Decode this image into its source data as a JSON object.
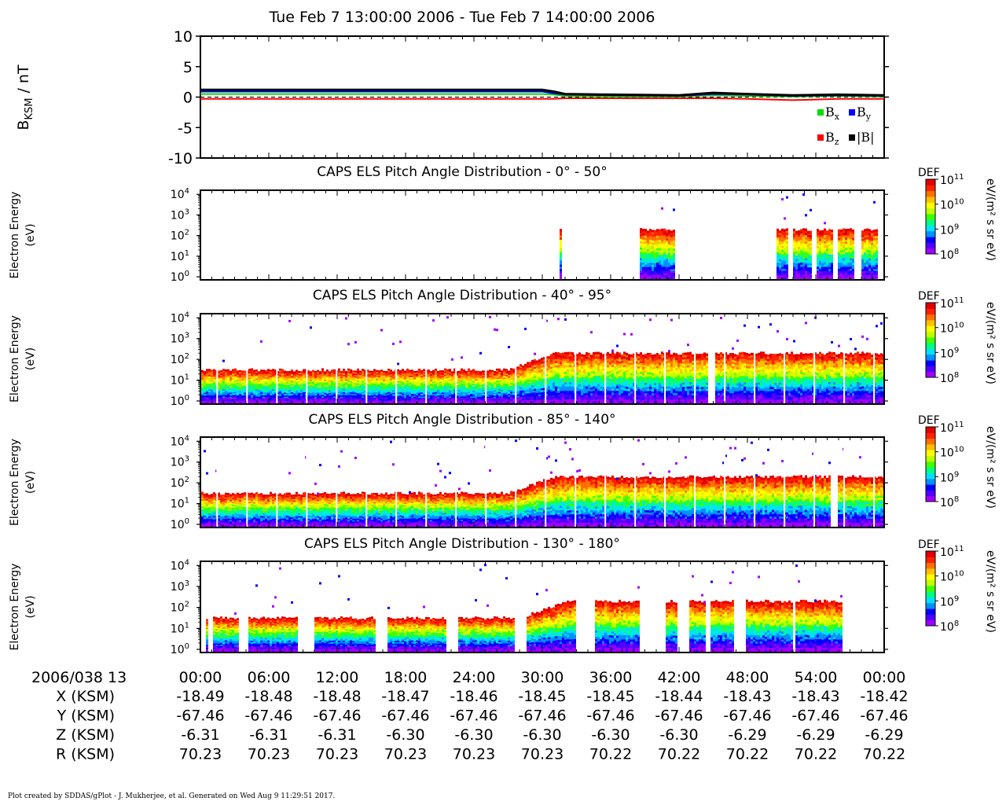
{
  "title": "Tue Feb 7 13:00:00 2006 - Tue Feb 7 14:00:00 2006",
  "footer": "Plot created by SDDAS/gPlot - J. Mukherjee, et al.  Generated on Wed Aug 9 11:29:51 2017.",
  "colors": {
    "bx": "#00dd00",
    "by": "#0000ff",
    "bz": "#ff0000",
    "bmag": "#000000",
    "colormap": [
      "#a000ff",
      "#5000ff",
      "#0000ff",
      "#0090ff",
      "#00e0ff",
      "#00ff80",
      "#40ff00",
      "#c0ff00",
      "#ffff00",
      "#ffc000",
      "#ff7000",
      "#ff2000",
      "#e00000"
    ]
  },
  "chart_data": [
    {
      "type": "line",
      "panel": "magnetic-field",
      "ylabel_main": "B",
      "ylabel_sub": "KSM",
      "ylabel_unit": " / nT",
      "ylim": [
        -10,
        10
      ],
      "yticks": [
        "10",
        "5",
        "0",
        "-5",
        "-10"
      ],
      "ytick_values": [
        10,
        5,
        0,
        -5,
        -10
      ],
      "x_minutes": [
        0,
        30,
        31,
        32,
        36,
        42,
        45,
        48,
        52,
        56,
        60
      ],
      "series": [
        {
          "name": "B",
          "sub": "x",
          "color_key": "bx",
          "values": [
            0.5,
            0.5,
            0.4,
            0.2,
            0.1,
            0.1,
            0.3,
            0.2,
            0.1,
            0.2,
            0.1
          ]
        },
        {
          "name": "B",
          "sub": "y",
          "color_key": "by",
          "values": [
            0.9,
            0.9,
            0.6,
            0.4,
            0.3,
            0.2,
            0.5,
            0.4,
            0.2,
            0.3,
            0.2
          ]
        },
        {
          "name": "B",
          "sub": "z",
          "color_key": "bz",
          "values": [
            -0.3,
            -0.3,
            -0.3,
            -0.2,
            -0.2,
            -0.2,
            -0.2,
            -0.3,
            -0.5,
            -0.3,
            -0.3
          ]
        },
        {
          "name": "|B|",
          "sub": "",
          "color_key": "bmag",
          "values": [
            1.2,
            1.2,
            0.9,
            0.5,
            0.4,
            0.3,
            0.7,
            0.5,
            0.3,
            0.4,
            0.3
          ]
        }
      ],
      "legend_placement": "bottom-right"
    },
    {
      "type": "heatmap",
      "panel": "pad-0-50",
      "title": "CAPS ELS Pitch Angle Distribution - 0° - 50°",
      "ylabel": [
        "Electron Energy",
        "(eV)"
      ],
      "log_y": true,
      "yticks": [
        0,
        1,
        2,
        3,
        4
      ],
      "colorbar": {
        "label": "DEF",
        "unit": "eV/(m² s sr eV)",
        "ticks": [
          8,
          9,
          10,
          11
        ]
      },
      "segments": [
        [
          31.5,
          31.7
        ],
        [
          38.5,
          41.5
        ],
        [
          50.5,
          51.5
        ],
        [
          52.0,
          53.5
        ],
        [
          54.0,
          55.5
        ],
        [
          55.8,
          57.3
        ],
        [
          57.8,
          59.3
        ]
      ],
      "top_exp": 2.3
    },
    {
      "type": "heatmap",
      "panel": "pad-40-95",
      "title": "CAPS ELS Pitch Angle Distribution - 40° - 95°",
      "ylabel": [
        "Electron Energy",
        "(eV)"
      ],
      "log_y": true,
      "yticks": [
        0,
        1,
        2,
        3,
        4
      ],
      "colorbar": {
        "label": "DEF",
        "unit": "eV/(m² s sr eV)",
        "ticks": [
          8,
          9,
          10,
          11
        ]
      },
      "segments": [
        [
          0,
          60
        ]
      ],
      "gaps": [
        44.5,
        45.1
      ],
      "top_exp_early": 1.5,
      "top_exp_late": 2.3,
      "transition_minute": 27
    },
    {
      "type": "heatmap",
      "panel": "pad-85-140",
      "title": "CAPS ELS Pitch Angle Distribution - 85° - 140°",
      "ylabel": [
        "Electron Energy",
        "(eV)"
      ],
      "log_y": true,
      "yticks": [
        0,
        1,
        2,
        3,
        4
      ],
      "colorbar": {
        "label": "DEF",
        "unit": "eV/(m² s sr eV)",
        "ticks": [
          8,
          9,
          10,
          11
        ]
      },
      "segments": [
        [
          0,
          60
        ]
      ],
      "gaps": [
        55.3,
        55.9
      ],
      "top_exp_early": 1.5,
      "top_exp_late": 2.3,
      "transition_minute": 27
    },
    {
      "type": "heatmap",
      "panel": "pad-130-180",
      "title": "CAPS ELS Pitch Angle Distribution - 130° - 180°",
      "ylabel": [
        "Electron Energy",
        "(eV)"
      ],
      "log_y": true,
      "yticks": [
        0,
        1,
        2,
        3,
        4
      ],
      "colorbar": {
        "label": "DEF",
        "unit": "eV/(m² s sr eV)",
        "ticks": [
          8,
          9,
          10,
          11
        ]
      },
      "segments": [
        [
          0.3,
          0.6
        ],
        [
          0.9,
          3.2
        ],
        [
          4.2,
          8.5
        ],
        [
          10.0,
          15.2
        ],
        [
          16.4,
          21.5
        ],
        [
          22.6,
          27.5
        ],
        [
          28.6,
          32.8
        ],
        [
          34.6,
          38.5
        ],
        [
          40.8,
          41.8
        ],
        [
          42.8,
          44.3
        ],
        [
          44.6,
          46.8
        ],
        [
          47.8,
          51.8
        ],
        [
          52.2,
          56.2
        ]
      ],
      "top_exp": 1.5,
      "top_exp_late": 2.3,
      "transition_minute": 28
    }
  ],
  "time_axis": {
    "row_label": "2006/038 13",
    "ticks": [
      "00:00",
      "06:00",
      "12:00",
      "18:00",
      "24:00",
      "30:00",
      "36:00",
      "42:00",
      "48:00",
      "54:00",
      "00:00"
    ],
    "tick_minutes": [
      0,
      6,
      12,
      18,
      24,
      30,
      36,
      42,
      48,
      54,
      60
    ]
  },
  "ephemeris": [
    {
      "label": "X (KSM)",
      "values": [
        "-18.49",
        "-18.48",
        "-18.48",
        "-18.47",
        "-18.46",
        "-18.45",
        "-18.45",
        "-18.44",
        "-18.43",
        "-18.43",
        "-18.42"
      ]
    },
    {
      "label": "Y (KSM)",
      "values": [
        "-67.46",
        "-67.46",
        "-67.46",
        "-67.46",
        "-67.46",
        "-67.46",
        "-67.46",
        "-67.46",
        "-67.46",
        "-67.46",
        "-67.46"
      ]
    },
    {
      "label": "Z (KSM)",
      "values": [
        "-6.31",
        "-6.31",
        "-6.31",
        "-6.30",
        "-6.30",
        "-6.30",
        "-6.30",
        "-6.30",
        "-6.29",
        "-6.29",
        "-6.29"
      ]
    },
    {
      "label": "R (KSM)",
      "values": [
        "70.23",
        "70.23",
        "70.23",
        "70.23",
        "70.23",
        "70.23",
        "70.22",
        "70.22",
        "70.22",
        "70.22",
        "70.22"
      ]
    }
  ]
}
